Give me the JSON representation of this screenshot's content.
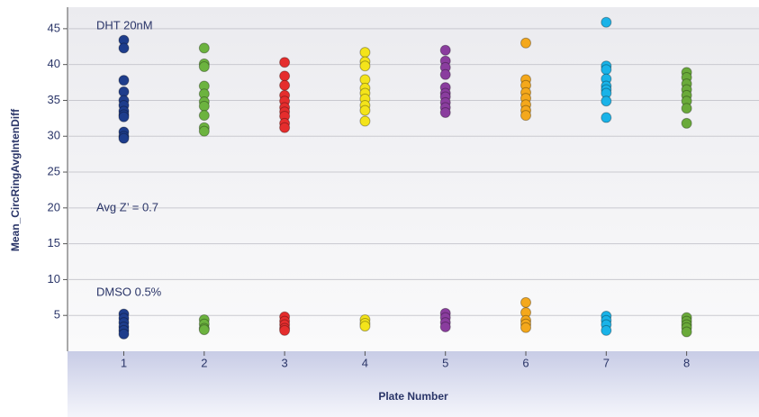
{
  "chart_data": {
    "type": "scatter",
    "y_label": "Mean_CircRingAvgIntenDiff",
    "x_label": "Plate Number",
    "annotations": [
      "DHT 20nM",
      "Avg Z’ = 0.7",
      "DMSO 0.5%"
    ],
    "xlim": [
      0.3,
      8.9
    ],
    "xticks": [
      1,
      2,
      3,
      4,
      5,
      6,
      7,
      8
    ],
    "ylim": [
      0,
      48
    ],
    "yticks": [
      5,
      10,
      15,
      20,
      25,
      30,
      35,
      40,
      45
    ],
    "grid": true,
    "series": [
      {
        "color": "#1e3d8c",
        "x": 1,
        "values": [
          43.4,
          42.3,
          37.8,
          36.2,
          35.0,
          34.3,
          33.5,
          33.0,
          32.7,
          30.6,
          30.0,
          29.7,
          5.2,
          4.6,
          4.0,
          3.4,
          2.9,
          2.4
        ]
      },
      {
        "color": "#6cb33f",
        "x": 2,
        "values": [
          42.3,
          40.1,
          39.7,
          37.0,
          35.9,
          34.8,
          34.2,
          32.9,
          31.2,
          30.7,
          4.4,
          3.8,
          3.2,
          3.0
        ]
      },
      {
        "color": "#e52d2d",
        "x": 3,
        "values": [
          40.3,
          38.4,
          37.1,
          35.7,
          34.9,
          34.0,
          33.4,
          32.8,
          31.8,
          31.2,
          4.8,
          4.2,
          3.7,
          3.2,
          2.9
        ]
      },
      {
        "color": "#f4e41a",
        "x": 4,
        "values": [
          41.7,
          40.4,
          39.8,
          37.9,
          36.7,
          36.0,
          35.2,
          34.3,
          33.6,
          32.1,
          4.4,
          3.9,
          3.5
        ]
      },
      {
        "color": "#8a3d9e",
        "x": 5,
        "values": [
          42.0,
          40.5,
          39.6,
          38.6,
          36.8,
          36.0,
          35.5,
          34.7,
          34.0,
          33.3,
          5.3,
          4.7,
          4.0,
          3.4
        ]
      },
      {
        "color": "#f4a81c",
        "x": 6,
        "values": [
          43.0,
          37.9,
          37.1,
          36.1,
          35.3,
          34.4,
          33.6,
          32.9,
          6.8,
          5.4,
          4.3,
          3.8,
          3.3
        ]
      },
      {
        "color": "#1ab3e8",
        "x": 7,
        "values": [
          45.9,
          39.8,
          39.3,
          38.0,
          37.0,
          36.5,
          36.0,
          34.9,
          32.6,
          4.9,
          4.3,
          3.7,
          2.9
        ]
      },
      {
        "color": "#6aaa3a",
        "x": 8,
        "values": [
          38.9,
          38.2,
          37.3,
          36.5,
          35.7,
          34.9,
          33.9,
          31.8,
          4.7,
          4.2,
          3.7,
          3.3,
          2.7
        ]
      }
    ]
  }
}
